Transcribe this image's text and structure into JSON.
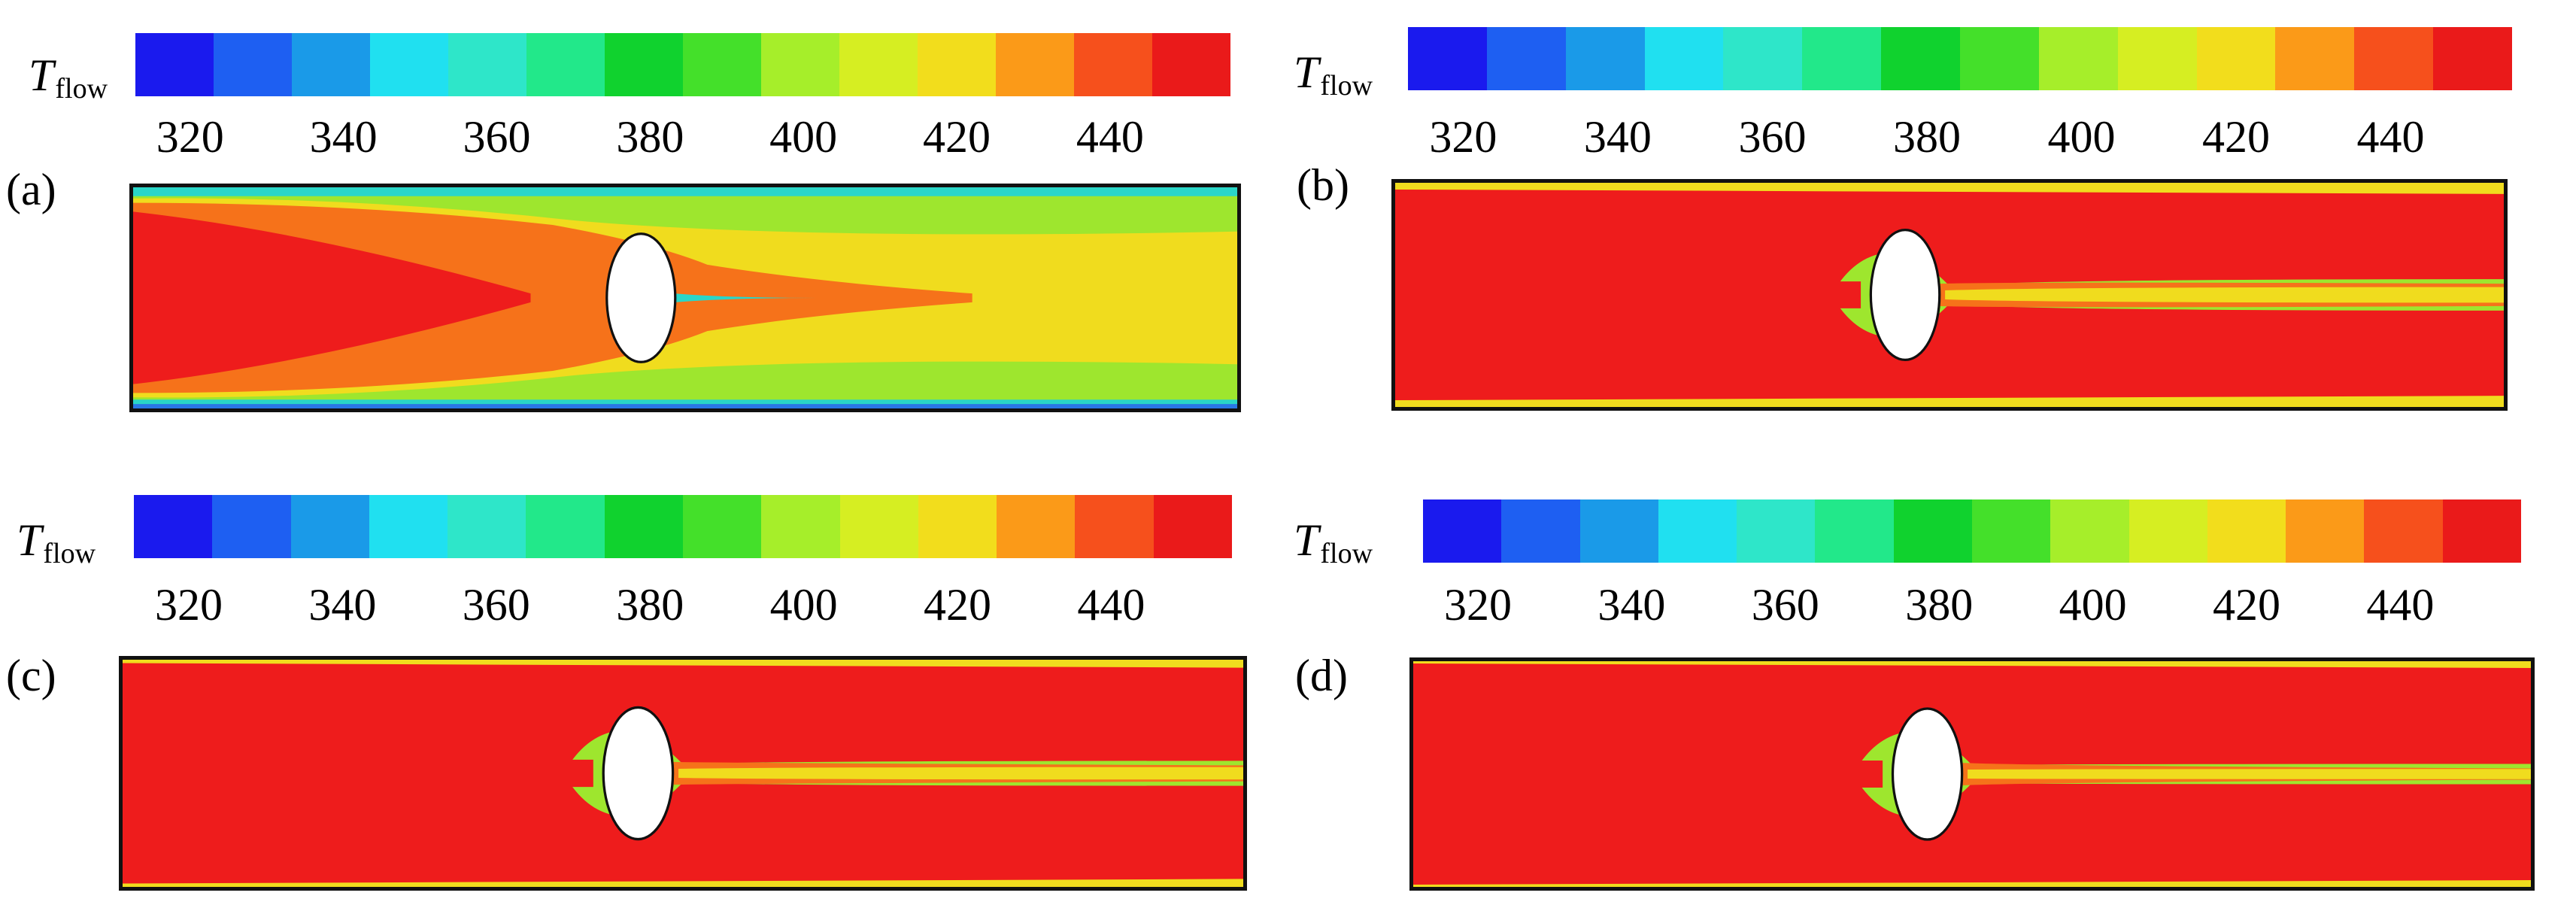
{
  "colorbar": {
    "symbol": "T",
    "subscript": "flow",
    "ticks": [
      "320",
      "340",
      "360",
      "380",
      "400",
      "420",
      "440"
    ],
    "colors": [
      "#1a1aee",
      "#1e5ff2",
      "#1a9ae8",
      "#20e0f0",
      "#2ee6c9",
      "#22e88a",
      "#10d22e",
      "#44e02a",
      "#a6ee2a",
      "#d6ee22",
      "#f2dd1c",
      "#fb9a18",
      "#f6501c",
      "#ea1a1a"
    ]
  },
  "panels": [
    {
      "id": "a",
      "label": "(a)"
    },
    {
      "id": "b",
      "label": "(b)"
    },
    {
      "id": "c",
      "label": "(c)"
    },
    {
      "id": "d",
      "label": "(d)"
    }
  ],
  "field_colors": {
    "hot": "#ee1c1c",
    "orange": "#f6721a",
    "yellow": "#f0dc1e",
    "lime": "#9ee62e",
    "green": "#4ed42c",
    "cyan": "#2ad6c8",
    "blue": "#2a78e6",
    "cylinder": "#ffffff"
  }
}
